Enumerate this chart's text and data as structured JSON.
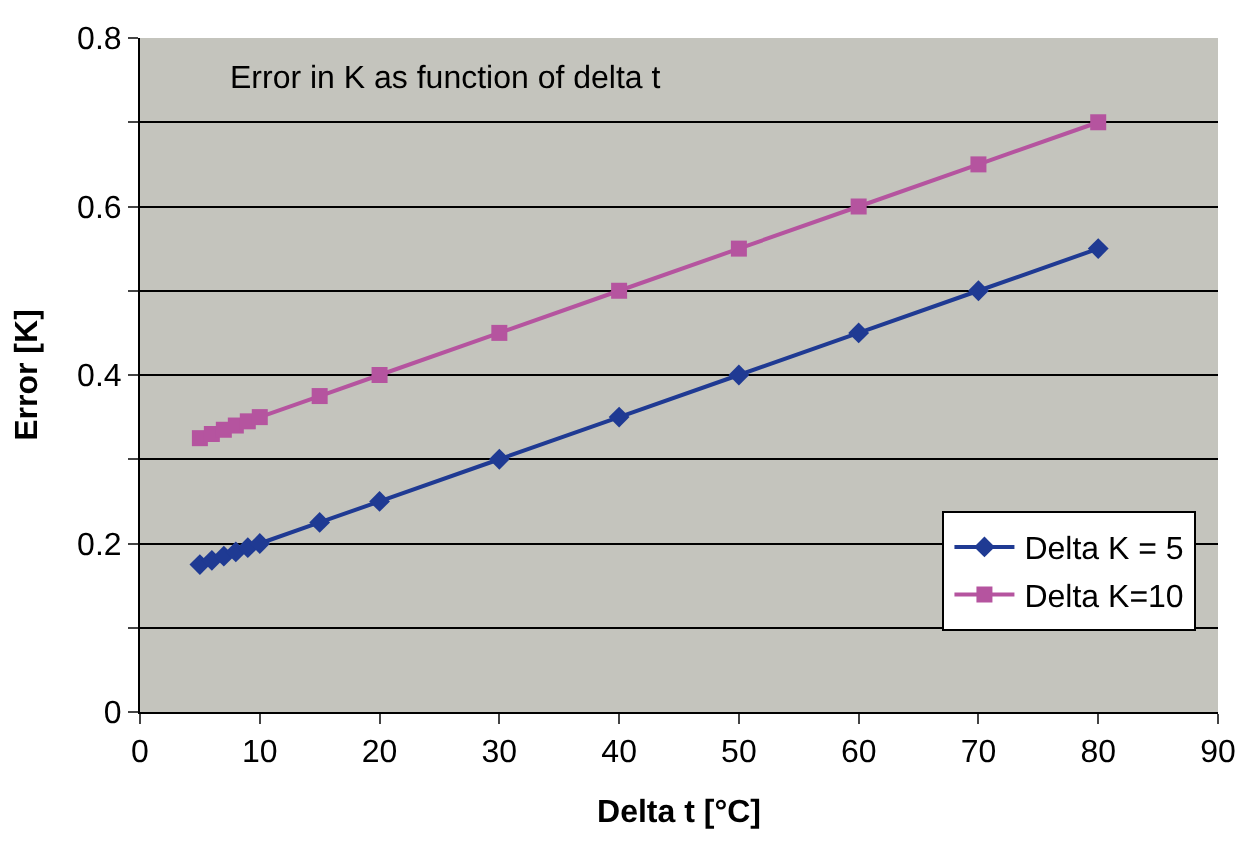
{
  "chart_data": {
    "type": "line",
    "title": "Error in K as function of delta t",
    "xlabel": "Delta t [°C]",
    "ylabel": "Error [K]",
    "x": [
      5,
      6,
      7,
      8,
      9,
      10,
      15,
      20,
      30,
      40,
      50,
      60,
      70,
      80
    ],
    "series": [
      {
        "name": "Delta K = 5",
        "color": "#1f3a93",
        "marker": "diamond",
        "values": [
          0.175,
          0.18,
          0.185,
          0.19,
          0.195,
          0.2,
          0.225,
          0.25,
          0.3,
          0.35,
          0.4,
          0.45,
          0.5,
          0.55
        ]
      },
      {
        "name": "Delta K=10",
        "color": "#b5549f",
        "marker": "square",
        "values": [
          0.325,
          0.33,
          0.335,
          0.34,
          0.345,
          0.35,
          0.375,
          0.4,
          0.45,
          0.5,
          0.55,
          0.6,
          0.65,
          0.7
        ]
      }
    ],
    "xlim": [
      0,
      90
    ],
    "xticks": [
      0,
      10,
      20,
      30,
      40,
      50,
      60,
      70,
      80,
      90
    ],
    "ylim": [
      0,
      0.8
    ],
    "yticks": [
      0,
      {
        "value": 0.1,
        "label": null
      },
      0.2,
      {
        "value": 0.3,
        "label": null
      },
      0.4,
      {
        "value": 0.5,
        "label": null
      },
      0.6,
      {
        "value": 0.7,
        "label": null
      },
      0.8
    ],
    "grid": "y",
    "legend": "bottom right",
    "line_style": "solid"
  }
}
